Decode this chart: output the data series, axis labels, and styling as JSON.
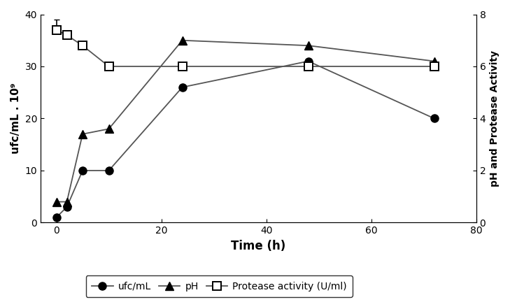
{
  "time": [
    0,
    2,
    5,
    10,
    24,
    48,
    72
  ],
  "ufc": [
    1,
    3,
    10,
    10,
    26,
    31,
    20
  ],
  "pH": [
    4,
    4,
    17,
    18,
    35,
    34,
    31
  ],
  "protease": [
    37,
    36,
    34,
    30,
    30,
    30,
    30
  ],
  "protease_yerr_up": 2.0,
  "ufc_label": "ufc/mL",
  "pH_label": "pH",
  "protease_label": "Protease activity (U/ml)",
  "xlabel": "Time (h)",
  "ylabel_left": "ufc/mL . 10⁹",
  "ylabel_right": "pH and Protease Activity",
  "xlim": [
    -3,
    80
  ],
  "ylim_left": [
    0,
    40
  ],
  "ylim_right": [
    0,
    8
  ],
  "xticks": [
    0,
    20,
    40,
    60,
    80
  ],
  "yticks_left": [
    0,
    10,
    20,
    30,
    40
  ],
  "yticks_right": [
    0,
    2,
    4,
    6,
    8
  ],
  "line_color": "#555555",
  "background_color": "#ffffff",
  "figsize": [
    7.29,
    4.32
  ],
  "dpi": 100
}
